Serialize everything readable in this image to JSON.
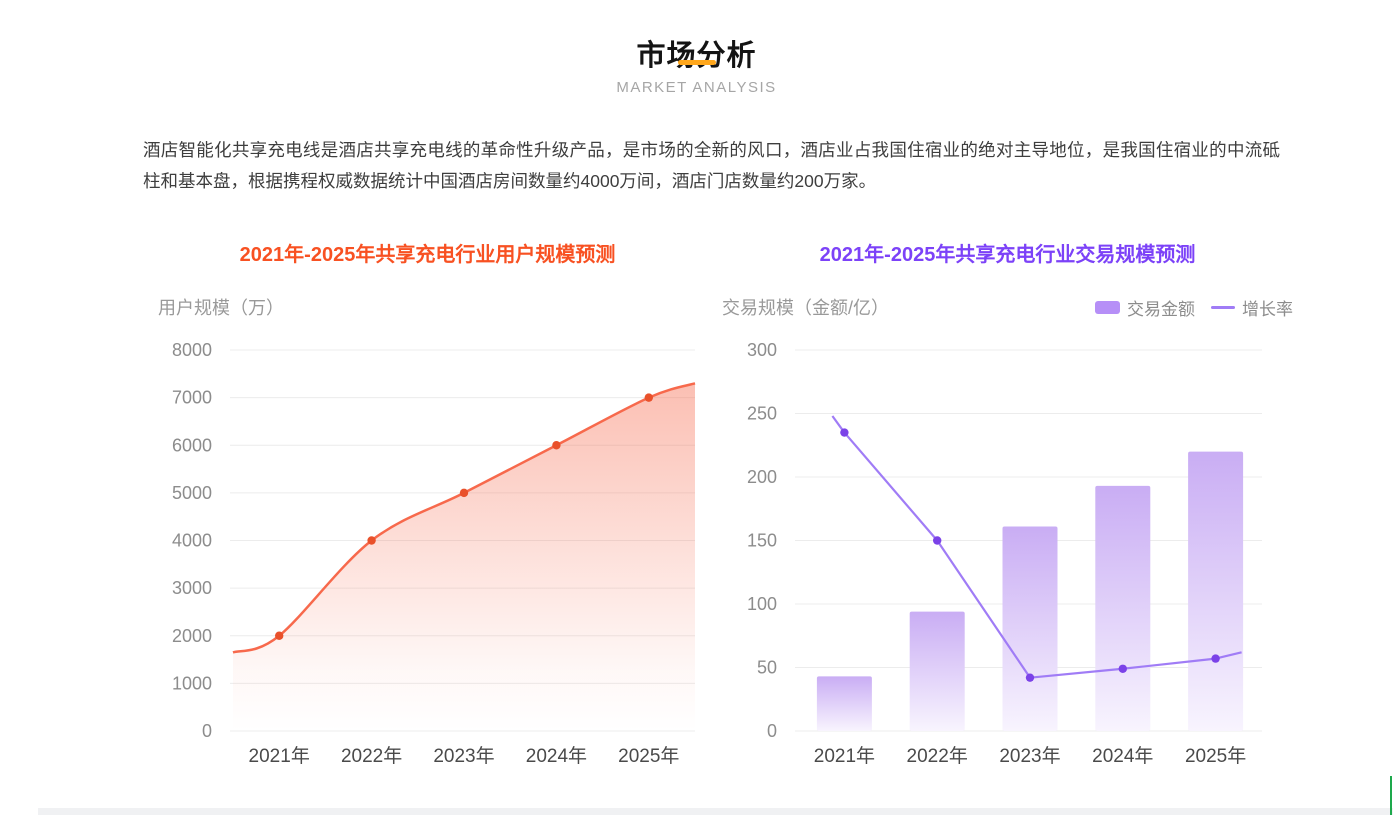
{
  "page": {
    "title": "市场分析",
    "subtitle": "MARKET ANALYSIS",
    "accent_color": "#FFA71C",
    "intro": "酒店智能化共享充电线是酒店共享充电线的革命性升级产品，是市场的全新的风口，酒店业占我国住宿业的绝对主导地位，是我国住宿业的中流砥柱和基本盘，根据携程权威数据统计中国酒店房间数量约4000万间，酒店门店数量约200万家。"
  },
  "chart_data": [
    {
      "id": "user-scale",
      "type": "area",
      "title": "2021年-2025年共享充电行业用户规模预测",
      "title_color": "#F85122",
      "axis_name": "用户规模（万）",
      "categories": [
        "2021年",
        "2022年",
        "2023年",
        "2024年",
        "2025年"
      ],
      "values": [
        2000,
        4000,
        5000,
        6000,
        7000
      ],
      "edge_values": {
        "left": 1650,
        "right": 7300
      },
      "ylim": [
        0,
        8000
      ],
      "ytick_step": 1000,
      "grid": true,
      "legend_position": "none",
      "line_color": "#F7694C",
      "point_color": "#E9512B",
      "area_top_color": "rgba(246,103,74,0.42)"
    },
    {
      "id": "transaction-scale",
      "type": "bar+line",
      "title": "2021年-2025年共享充电行业交易规模预测",
      "title_color": "#7C42F8",
      "axis_name": "交易规模（金额/亿）",
      "categories": [
        "2021年",
        "2022年",
        "2023年",
        "2024年",
        "2025年"
      ],
      "series": [
        {
          "name": "交易金额",
          "type": "bar",
          "values": [
            43,
            94,
            161,
            193,
            220
          ],
          "bar_top_color": "#C9ADF4",
          "bar_bottom_color": "#F8F4FE"
        },
        {
          "name": "增长率",
          "type": "line",
          "values": [
            235,
            150,
            42,
            49,
            57
          ],
          "edge_values": {
            "left": 248,
            "right": 62
          },
          "line_color": "#A07CF6",
          "point_color": "#7B42E8"
        }
      ],
      "legend": [
        {
          "label": "交易金额",
          "swatch": "rect",
          "color": "#B68FF7"
        },
        {
          "label": "增长率",
          "swatch": "line",
          "color": "#A07CF6"
        }
      ],
      "ylim": [
        0,
        300
      ],
      "ytick_step": 50,
      "grid": true,
      "legend_position": "top-right"
    }
  ]
}
